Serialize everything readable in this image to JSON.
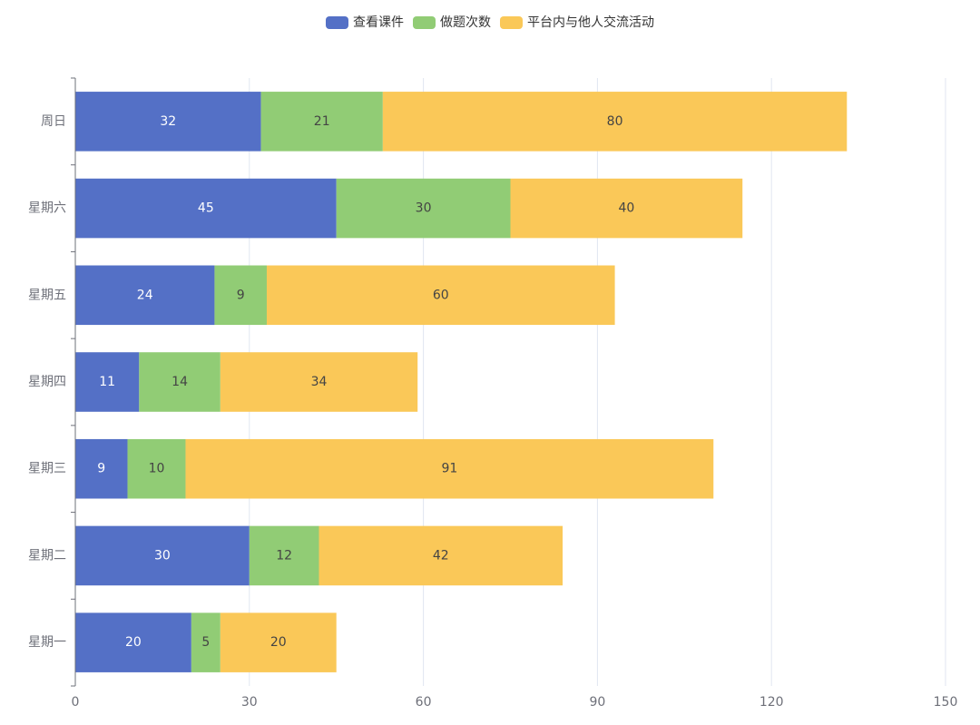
{
  "chart_data": {
    "type": "bar",
    "orientation": "horizontal",
    "stacked": true,
    "categories": [
      "星期一",
      "星期二",
      "星期三",
      "星期四",
      "星期五",
      "星期六",
      "周日"
    ],
    "series": [
      {
        "name": "查看课件",
        "color": "#5470c6",
        "values": [
          20,
          30,
          9,
          11,
          24,
          45,
          32
        ]
      },
      {
        "name": "做题次数",
        "color": "#91cc75",
        "values": [
          5,
          12,
          10,
          14,
          9,
          30,
          21
        ]
      },
      {
        "name": "平台内与他人交流活动",
        "color": "#fac858",
        "values": [
          20,
          42,
          91,
          34,
          60,
          40,
          80
        ]
      }
    ],
    "xlim": [
      0,
      150
    ],
    "xticks": [
      0,
      30,
      60,
      90,
      120,
      150
    ],
    "grid": true,
    "legend_position": "top-center"
  }
}
